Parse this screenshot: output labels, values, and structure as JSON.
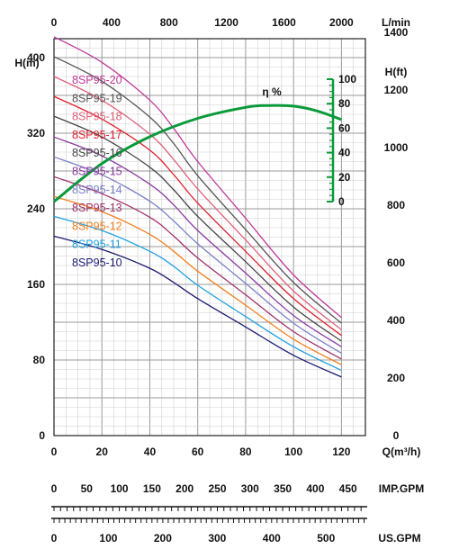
{
  "chart_data": {
    "type": "line",
    "title": "",
    "axes": {
      "bottom": {
        "label": "Q(m³/h)",
        "ticks": [
          "0",
          "20",
          "40",
          "60",
          "80",
          "100",
          "120"
        ],
        "range": [
          0,
          130
        ]
      },
      "top": {
        "label": "L/min",
        "ticks": [
          "0",
          "400",
          "800",
          "1200",
          "1600",
          "2000"
        ]
      },
      "left": {
        "label": "H(m)",
        "ticks": [
          "0",
          "80",
          "160",
          "240",
          "320",
          "400"
        ],
        "range": [
          0,
          420
        ]
      },
      "right": {
        "label": "H(ft)",
        "ticks": [
          "0",
          "200",
          "400",
          "600",
          "800",
          "1000",
          "1200",
          "1400"
        ]
      },
      "efficiency": {
        "label": "η %",
        "ticks": [
          "0",
          "20",
          "40",
          "60",
          "80",
          "100"
        ],
        "range": [
          0,
          100
        ]
      },
      "imp_gpm": {
        "label": "IMP.GPM",
        "ticks": [
          "0",
          "50",
          "100",
          "150",
          "200",
          "250",
          "300",
          "350",
          "400",
          "450"
        ]
      },
      "us_gpm": {
        "label": "US.GPM",
        "ticks": [
          "0",
          "100",
          "200",
          "300",
          "400",
          "500"
        ]
      }
    },
    "grid": true,
    "x": [
      0,
      20,
      40,
      50,
      60,
      80,
      100,
      120
    ],
    "series": [
      {
        "name": "8SP95-20",
        "color": "#c0399a",
        "values": [
          422,
          395,
          355,
          325,
          290,
          230,
          170,
          125
        ]
      },
      {
        "name": "8SP95-19",
        "color": "#555555",
        "values": [
          401,
          375,
          337,
          309,
          275,
          218,
          162,
          119
        ]
      },
      {
        "name": "8SP95-18",
        "color": "#e0607a",
        "values": [
          380,
          355,
          319,
          292,
          261,
          207,
          153,
          112
        ]
      },
      {
        "name": "8SP95-17",
        "color": "#e0202e",
        "values": [
          359,
          335,
          302,
          276,
          246,
          195,
          145,
          106
        ]
      },
      {
        "name": "8SP95-16",
        "color": "#444444",
        "values": [
          338,
          316,
          284,
          260,
          232,
          184,
          136,
          100
        ]
      },
      {
        "name": "8SP95-15",
        "color": "#8b3aa0",
        "values": [
          316,
          296,
          266,
          244,
          217,
          172,
          127,
          94
        ]
      },
      {
        "name": "8SP95-14",
        "color": "#7a7fc8",
        "values": [
          295,
          276,
          248,
          227,
          203,
          161,
          119,
          87
        ]
      },
      {
        "name": "8SP95-13",
        "color": "#a0306a",
        "values": [
          274,
          256,
          231,
          211,
          188,
          149,
          110,
          81
        ]
      },
      {
        "name": "8SP95-12",
        "color": "#f08020",
        "values": [
          253,
          237,
          213,
          195,
          174,
          138,
          102,
          75
        ]
      },
      {
        "name": "8SP95-11",
        "color": "#1ea0e0",
        "values": [
          232,
          217,
          195,
          179,
          159,
          126,
          94,
          69
        ]
      },
      {
        "name": "8SP95-10",
        "color": "#1a1a70",
        "values": [
          211,
          197,
          177,
          162,
          145,
          115,
          85,
          62
        ]
      }
    ],
    "efficiency_curve": {
      "name": "η %",
      "color": "#0a9a3a",
      "x": [
        0,
        20,
        40,
        60,
        80,
        90,
        100,
        110,
        120
      ],
      "values": [
        0,
        31,
        53,
        68,
        77,
        78.5,
        78,
        74,
        67
      ]
    }
  }
}
